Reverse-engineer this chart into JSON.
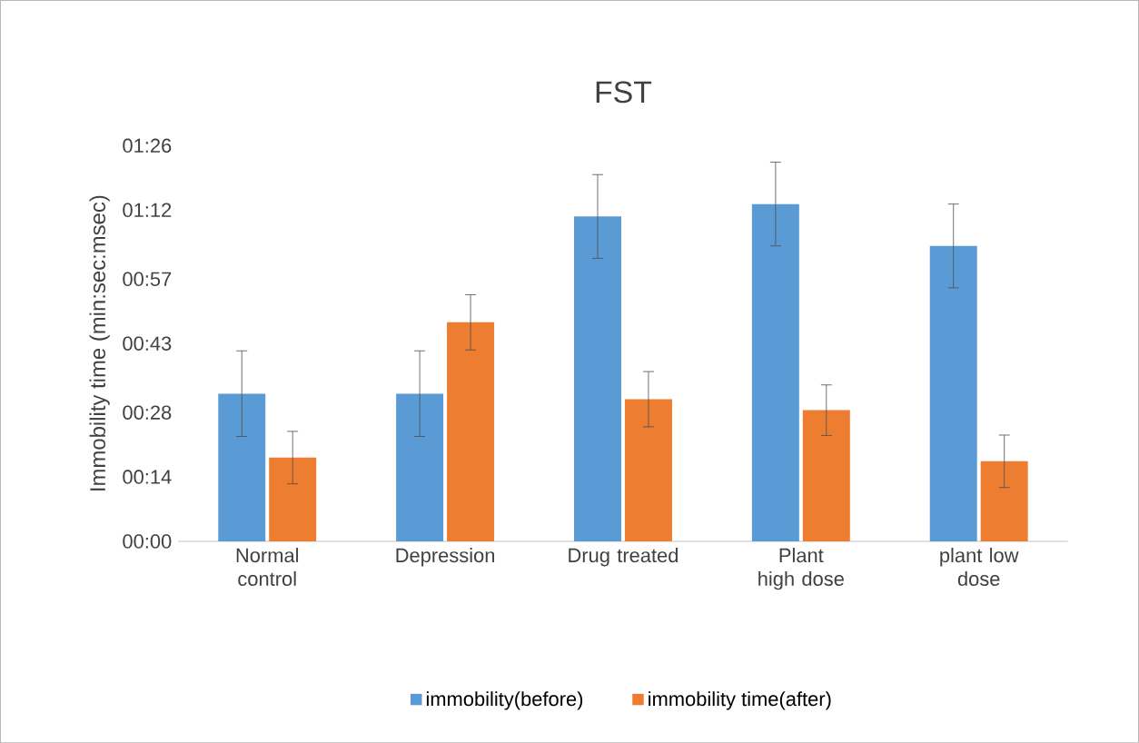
{
  "chart_data": {
    "type": "bar",
    "title": "FST",
    "ylabel": "Immobility time (min:sec:msec)",
    "categories": [
      "Normal control",
      "Depression",
      "Drug treated",
      "Plant high dose",
      "plant low dose"
    ],
    "series": [
      {
        "name": "immobility(before)",
        "color": "#5b9bd5",
        "values": [
          32.1,
          32.1,
          70.6,
          73.3,
          64.2
        ],
        "errors": [
          9.3,
          9.3,
          9.1,
          9.1,
          9.1
        ]
      },
      {
        "name": "immobility time(after)",
        "color": "#ed7d31",
        "values": [
          18.2,
          47.6,
          30.9,
          28.5,
          17.4
        ],
        "errors": [
          5.7,
          6,
          6,
          5.5,
          5.7
        ]
      }
    ],
    "ylim": [
      0,
      86
    ],
    "yticks": [
      {
        "value": 0,
        "label": "00:00"
      },
      {
        "value": 14,
        "label": "00:14"
      },
      {
        "value": 28,
        "label": "00:28"
      },
      {
        "value": 43,
        "label": "00:43"
      },
      {
        "value": 57,
        "label": "00:57"
      },
      {
        "value": 72,
        "label": "01:12"
      },
      {
        "value": 86,
        "label": "01:26"
      }
    ],
    "legend": "bottom"
  }
}
